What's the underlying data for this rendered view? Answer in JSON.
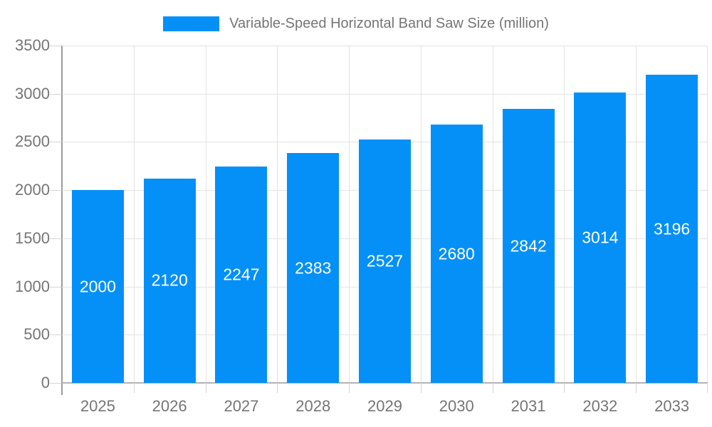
{
  "chart_data": {
    "type": "bar",
    "title": "Variable-Speed Horizontal Band Saw Size (million)",
    "categories": [
      "2025",
      "2026",
      "2027",
      "2028",
      "2029",
      "2030",
      "2031",
      "2032",
      "2033"
    ],
    "values": [
      2000,
      2120,
      2247,
      2383,
      2527,
      2680,
      2842,
      3014,
      3196
    ],
    "series_name": "Variable-Speed Horizontal Band Saw Size (million)",
    "xlabel": "",
    "ylabel": "",
    "ylim": [
      0,
      3500
    ],
    "ytick_step": 500,
    "ytick_labels": [
      "0",
      "500",
      "1000",
      "1500",
      "2000",
      "2500",
      "3000",
      "3500"
    ],
    "grid": true,
    "legend_position": "top",
    "colors": {
      "bar": "#0590f8",
      "bar_label_text": "#ffffff",
      "axis_text": "#757575",
      "title_text": "#757575",
      "gridline": "#e3e3e3",
      "axis_line": "#9b9b9b",
      "baseline": "#b3b3b3",
      "tick": "#d4d4d4",
      "background": "#ffffff"
    }
  }
}
